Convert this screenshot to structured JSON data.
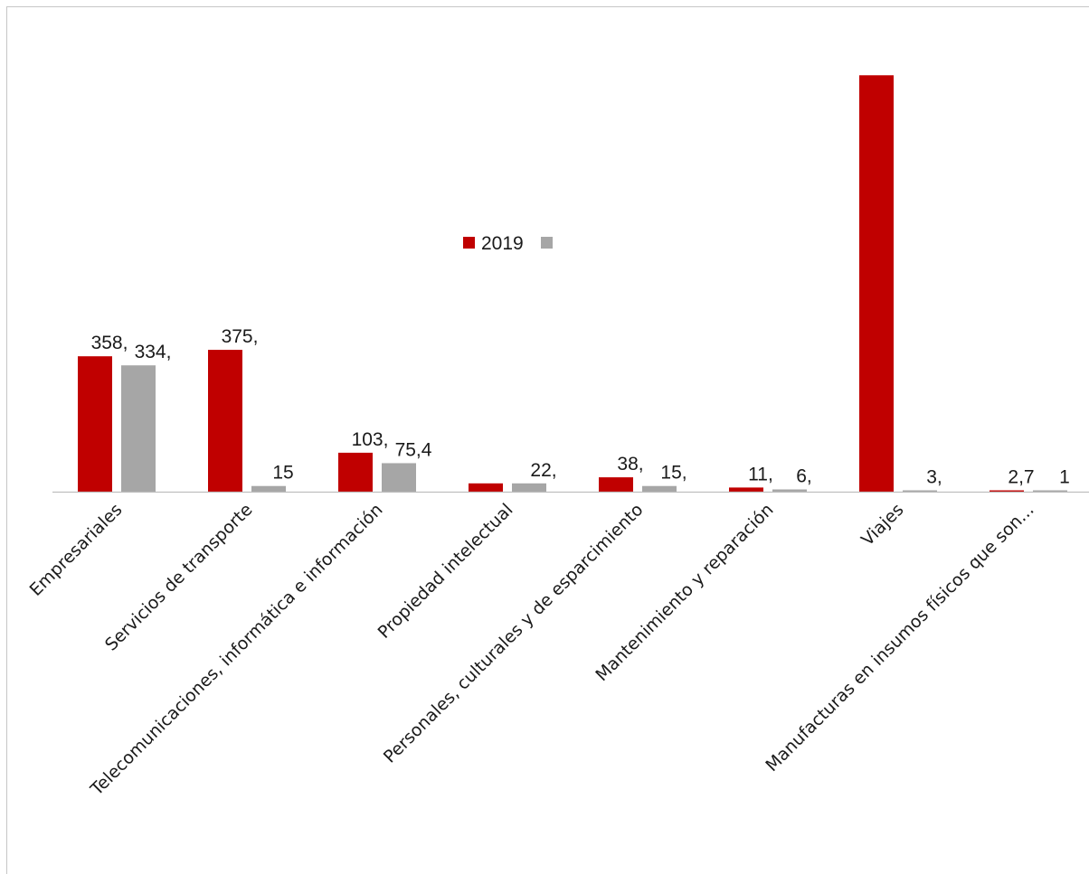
{
  "chart_data": {
    "type": "bar",
    "categories": [
      "Empresariales",
      "Servicios de transporte",
      "Telecomunicaciones, informática e información",
      "Propiedad intelectual",
      "Personales, culturales y de esparcimiento",
      "Mantenimiento y reparación",
      "Viajes",
      "Manufacturas en insumos físicos que son..."
    ],
    "series": [
      {
        "name": "2019",
        "color": "#c00000",
        "values": [
          358,
          375,
          103,
          22,
          38,
          11,
          1101,
          2.7
        ],
        "labels": [
          "358,",
          "375,",
          "103,",
          "",
          "38,",
          "11,",
          "",
          "2,7"
        ]
      },
      {
        "name": "",
        "color": "#a6a6a6",
        "values": [
          334,
          15,
          75.4,
          22,
          15,
          6,
          3,
          1
        ],
        "labels": [
          "334,",
          "15",
          "75,4",
          "22,",
          "15,",
          "6,",
          "3,",
          "1"
        ]
      }
    ],
    "ylim": [
      0,
      1300
    ],
    "grid": false,
    "legend": "top-center"
  }
}
